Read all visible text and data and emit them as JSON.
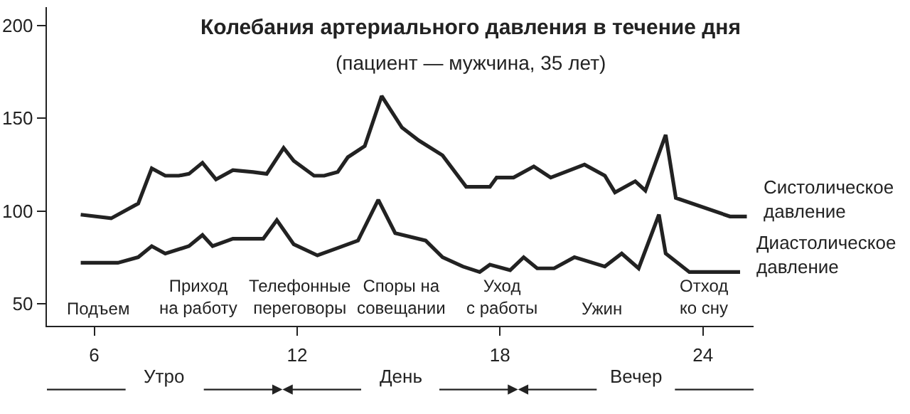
{
  "chart_data": {
    "type": "line",
    "title": "Колебания артериального давления в течение дня",
    "subtitle": "(пациент — мужчина, 35 лет)",
    "xlim": [
      4.6,
      25.5
    ],
    "xticks": [
      6,
      12,
      18,
      24
    ],
    "ylim": [
      38,
      210
    ],
    "yticks": [
      50,
      100,
      150,
      200
    ],
    "series": [
      {
        "name": "Систолическое\nдавление",
        "color": "#222222",
        "x": [
          5.6,
          6.5,
          7.3,
          7.7,
          8.1,
          8.5,
          8.8,
          9.2,
          9.6,
          10.1,
          10.7,
          11.1,
          11.6,
          11.9,
          12.5,
          12.8,
          13.2,
          13.5,
          14.0,
          14.5,
          15.1,
          15.6,
          16.3,
          17.0,
          17.7,
          17.9,
          18.4,
          19.0,
          19.5,
          20.5,
          21.1,
          21.4,
          22.0,
          22.3,
          22.9,
          23.2,
          24.8,
          25.3
        ],
        "values": [
          98,
          96,
          104,
          123,
          119,
          119,
          120,
          126,
          117,
          122,
          121,
          120,
          134,
          127,
          119,
          119,
          121,
          129,
          135,
          162,
          145,
          138,
          130,
          113,
          113,
          118,
          118,
          124,
          118,
          125,
          119,
          110,
          116,
          111,
          141,
          107,
          97,
          97
        ]
      },
      {
        "name": "Диастолическое\nдавление",
        "color": "#222222",
        "x": [
          5.6,
          6.7,
          7.3,
          7.7,
          8.1,
          8.8,
          9.2,
          9.5,
          10.1,
          11.0,
          11.4,
          11.9,
          12.6,
          13.2,
          13.8,
          14.4,
          14.9,
          15.8,
          16.3,
          16.9,
          17.4,
          17.7,
          18.3,
          18.7,
          19.1,
          19.6,
          20.2,
          21.1,
          21.6,
          22.1,
          22.7,
          22.9,
          23.6,
          25.1
        ],
        "values": [
          72,
          72,
          75,
          81,
          77,
          81,
          87,
          81,
          85,
          85,
          95,
          82,
          76,
          80,
          84,
          106,
          88,
          84,
          75,
          70,
          67,
          71,
          68,
          75,
          69,
          69,
          75,
          70,
          77,
          69,
          98,
          77,
          67,
          67
        ]
      }
    ],
    "annotations": [
      "Подъем",
      "Приход\nна работу",
      "Телефонные\nпереговоры",
      "Споры на\nсовещании",
      "Уход\nс работы",
      "Ужин",
      "Отход\nко сну",
      "Утро",
      "День",
      "Вечер"
    ],
    "grid": false,
    "legend": false,
    "marker": "none",
    "line_style": "solid"
  }
}
